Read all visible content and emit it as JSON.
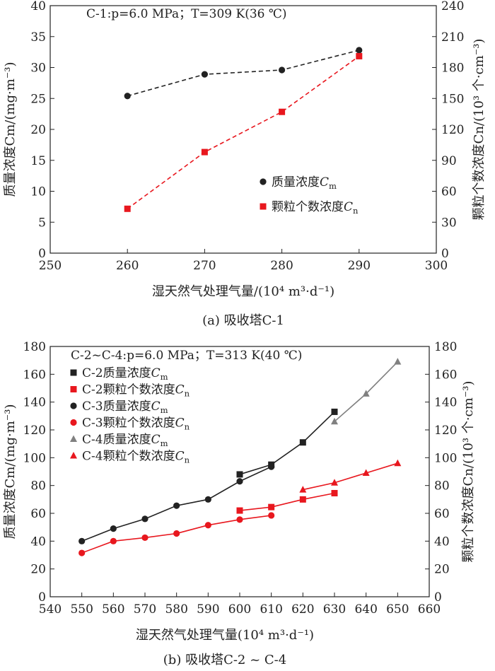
{
  "chart_data": [
    {
      "type": "line",
      "title": "C-1:p=6.0 MPa；T=309 K(36 ℃)",
      "caption": "(a) 吸收塔C-1",
      "xlabel": "湿天然气处理气量/(10⁴ m³·d⁻¹)",
      "ylabel_left": "质量浓度Cm/(mg·m⁻³)",
      "ylabel_right": "颗粒个数浓度Cn/(10³ 个·cm⁻³)",
      "xlim": [
        250,
        300
      ],
      "ylim_left": [
        0,
        40
      ],
      "ylim_right": [
        0,
        240
      ],
      "x_ticks": [
        "250",
        "260",
        "270",
        "280",
        "290",
        "300"
      ],
      "y_left_ticks": [
        "0",
        "5",
        "10",
        "15",
        "20",
        "25",
        "30",
        "35",
        "40"
      ],
      "y_right_ticks": [
        "0",
        "30",
        "60",
        "90",
        "120",
        "150",
        "180",
        "210",
        "240"
      ],
      "legend_position": "bottom-right",
      "series": [
        {
          "name": "质量浓度Cm",
          "axis": "left",
          "color": "#222222",
          "marker": "circle",
          "line": "dashed",
          "x": [
            260,
            270,
            280,
            290
          ],
          "y": [
            25.4,
            28.9,
            29.6,
            32.8
          ]
        },
        {
          "name": "颗粒个数浓度Cn",
          "axis": "right",
          "color": "#e8171e",
          "marker": "square",
          "line": "dashed",
          "x": [
            260,
            270,
            280,
            290
          ],
          "y": [
            43,
            98,
            137,
            191
          ]
        }
      ]
    },
    {
      "type": "line",
      "title": "C-2~C-4:p=6.0 MPa；T=313 K(40 ℃)",
      "caption": "(b) 吸收塔C-2 ~ C-4",
      "xlabel": "湿天然气处理气量(10⁴ m³·d⁻¹)",
      "ylabel_left": "质量浓度Cm/(mg·m⁻³)",
      "ylabel_right": "颗粒个数浓度Cn/(10³ 个·cm⁻³)",
      "xlim": [
        540,
        660
      ],
      "ylim_left": [
        0,
        180
      ],
      "ylim_right": [
        0,
        180
      ],
      "x_ticks": [
        "540",
        "550",
        "560",
        "570",
        "580",
        "590",
        "600",
        "610",
        "620",
        "630",
        "640",
        "650",
        "660"
      ],
      "y_left_ticks": [
        "0",
        "20",
        "40",
        "60",
        "80",
        "100",
        "120",
        "140",
        "160",
        "180"
      ],
      "y_right_ticks": [
        "0",
        "20",
        "40",
        "60",
        "80",
        "100",
        "120",
        "140",
        "160",
        "180"
      ],
      "legend_position": "top-left",
      "series": [
        {
          "name": "C-2质量浓度Cm",
          "axis": "left",
          "color": "#222222",
          "marker": "square",
          "line": "solid",
          "x": [
            600,
            610,
            620,
            630
          ],
          "y": [
            88,
            95,
            111,
            133
          ]
        },
        {
          "name": "C-2颗粒个数浓度Cn",
          "axis": "right",
          "color": "#e8171e",
          "marker": "square",
          "line": "solid",
          "x": [
            600,
            610,
            620,
            630
          ],
          "y": [
            62,
            64.5,
            70,
            74.5
          ]
        },
        {
          "name": "C-3质量浓度Cm",
          "axis": "left",
          "color": "#222222",
          "marker": "circle",
          "line": "solid",
          "x": [
            550,
            560,
            570,
            580,
            590,
            600,
            610
          ],
          "y": [
            40,
            49,
            56,
            65.5,
            70,
            83,
            93.5
          ]
        },
        {
          "name": "C-3颗粒个数浓度Cn",
          "axis": "right",
          "color": "#e8171e",
          "marker": "circle",
          "line": "solid",
          "x": [
            550,
            560,
            570,
            580,
            590,
            600,
            610
          ],
          "y": [
            31.5,
            40,
            42.5,
            45.5,
            51.5,
            55.5,
            58.5
          ]
        },
        {
          "name": "C-4质量浓度Cm",
          "axis": "left",
          "color": "#808080",
          "marker": "triangle",
          "line": "solid",
          "x": [
            630,
            640,
            650
          ],
          "y": [
            126,
            146,
            169
          ]
        },
        {
          "name": "C-4颗粒个数浓度Cn",
          "axis": "right",
          "color": "#e8171e",
          "marker": "triangle",
          "line": "solid",
          "x": [
            620,
            630,
            640,
            650
          ],
          "y": [
            77,
            82,
            89,
            96
          ]
        }
      ]
    }
  ]
}
